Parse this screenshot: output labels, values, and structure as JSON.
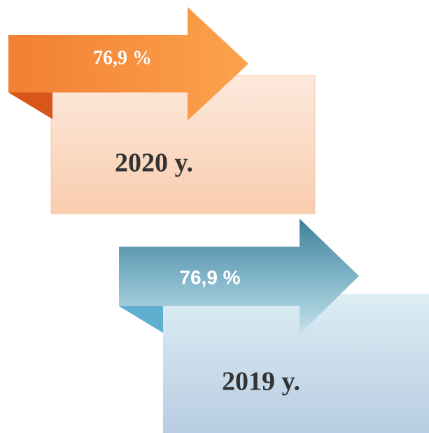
{
  "items": [
    {
      "label": "76,9 %",
      "year": "2020 y."
    },
    {
      "label": "76,9 %",
      "year": "2019 y."
    }
  ]
}
